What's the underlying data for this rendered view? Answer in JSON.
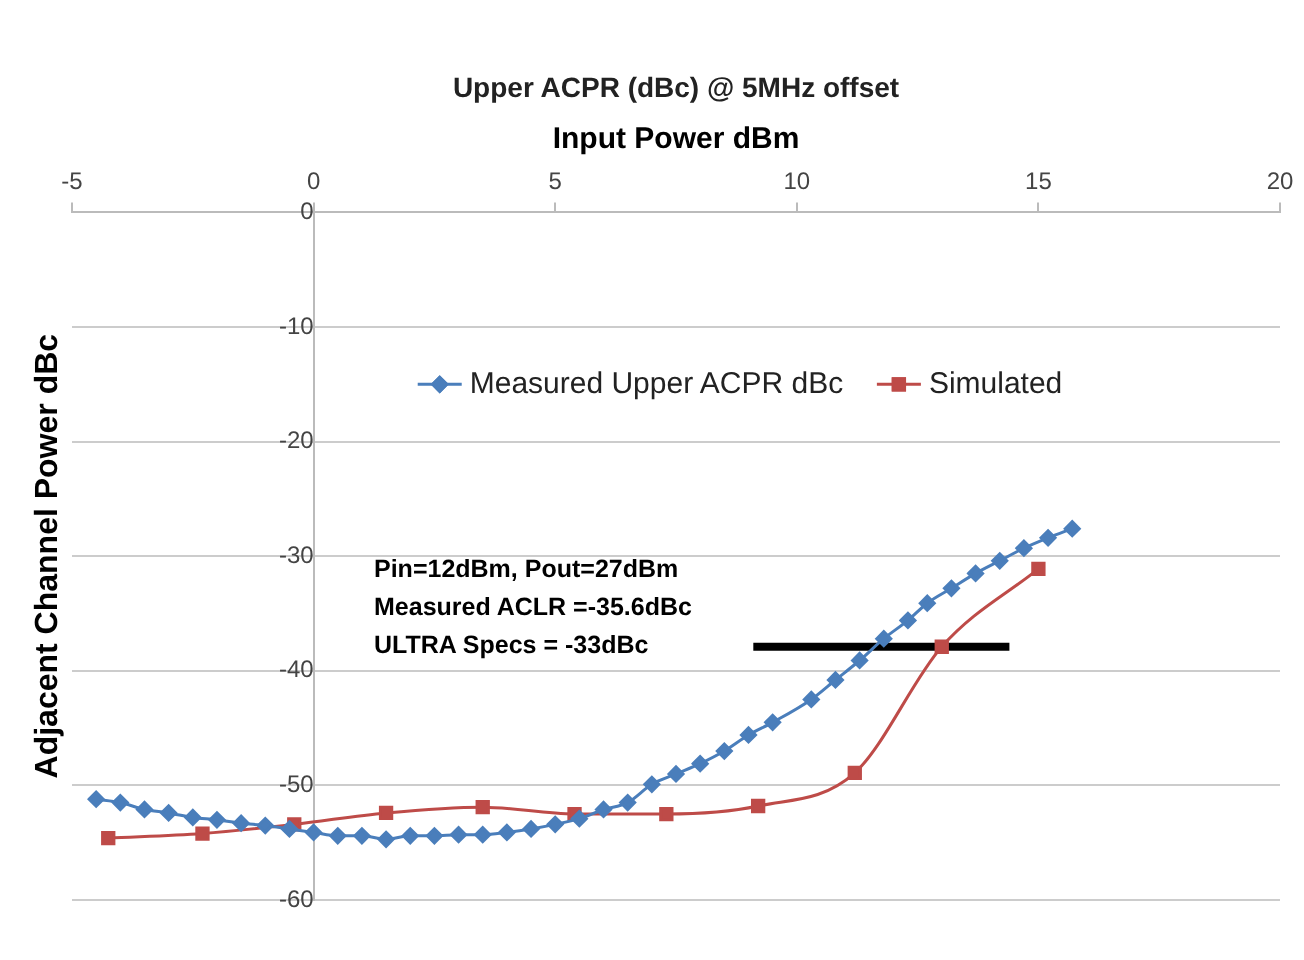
{
  "chart_data": {
    "type": "line",
    "title": "Upper ACPR (dBc) @ 5MHz offset",
    "xlabel": "Input Power dBm",
    "ylabel": "Adjacent Channel Power dBc",
    "xlim": [
      -5,
      20
    ],
    "xticks": [
      -5,
      0,
      5,
      10,
      15,
      20
    ],
    "ylim": [
      -60,
      0
    ],
    "yticks": [
      0,
      -10,
      -20,
      -30,
      -40,
      -50,
      -60
    ],
    "grid": "y",
    "legend": "top",
    "series": [
      {
        "name": "Measured Upper ACPR dBc",
        "color": "#4a7ebb",
        "marker": "diamond",
        "x": [
          -4.5,
          -4,
          -3.5,
          -3,
          -2.5,
          -2,
          -1.5,
          -1,
          -0.5,
          0,
          0.5,
          1,
          1.5,
          2,
          2.5,
          3,
          3.5,
          4,
          4.5,
          5,
          5.5,
          6,
          6.5,
          7,
          7.5,
          8,
          8.5,
          9,
          9.5,
          10.3,
          10.8,
          11.3,
          11.8,
          12.3,
          12.7,
          13.2,
          13.7,
          14.2,
          14.7,
          15.2,
          15.7
        ],
        "values": [
          -51.2,
          -51.5,
          -52.1,
          -52.4,
          -52.8,
          -53.0,
          -53.3,
          -53.5,
          -53.8,
          -54.1,
          -54.4,
          -54.4,
          -54.7,
          -54.4,
          -54.4,
          -54.3,
          -54.3,
          -54.1,
          -53.8,
          -53.4,
          -52.9,
          -52.1,
          -51.5,
          -49.9,
          -49.0,
          -48.1,
          -47.0,
          -45.6,
          -44.5,
          -42.5,
          -40.8,
          -39.1,
          -37.2,
          -35.6,
          -34.1,
          -32.8,
          -31.5,
          -30.4,
          -29.3,
          -28.4,
          -27.6
        ]
      },
      {
        "name": "Simulated",
        "color": "#be4b48",
        "marker": "square",
        "x": [
          -4.25,
          -2.3,
          -0.4,
          1.5,
          3.5,
          5.4,
          7.3,
          9.2,
          11.2,
          13.0,
          15.0
        ],
        "values": [
          -54.6,
          -54.2,
          -53.4,
          -52.4,
          -51.9,
          -52.5,
          -52.5,
          -51.8,
          -48.9,
          -37.9,
          -31.1
        ]
      },
      {
        "color": "#000000",
        "marker": "none",
        "x": [
          9.1,
          14.4
        ],
        "values": [
          -37.9,
          -37.9
        ]
      }
    ],
    "annotations": [
      "Pin=12dBm, Pout=27dBm",
      "Measured ACLR =-35.6dBc",
      "ULTRA Specs = -33dBc"
    ]
  }
}
